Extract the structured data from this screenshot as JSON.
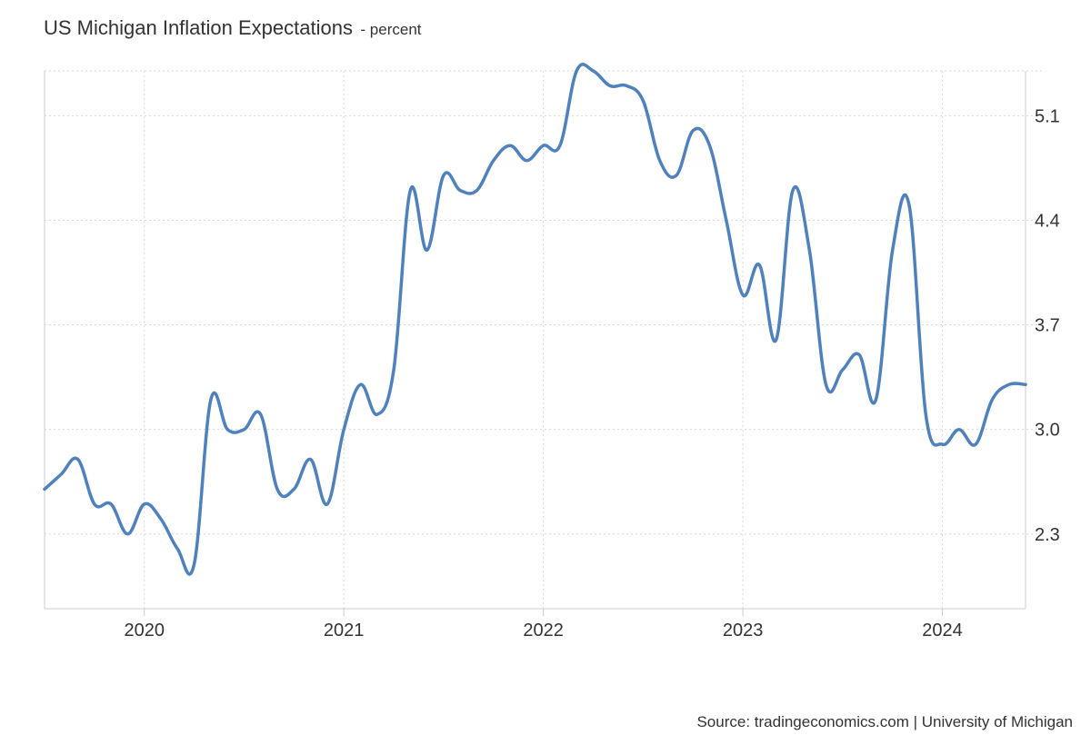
{
  "chart_data": {
    "type": "line",
    "title": "US Michigan Inflation Expectations",
    "subtitle": "- percent",
    "source": "Source: tradingeconomics.com | University of Michigan",
    "xlabel": "",
    "ylabel": "",
    "grid": true,
    "line_color": "#4f81bd",
    "ylim": [
      1.8,
      5.4
    ],
    "y_ticks": [
      2.3,
      3.0,
      3.7,
      4.4,
      5.1
    ],
    "y_tick_labels": [
      "2.3",
      "3.0",
      "3.7",
      "4.4",
      "5.1"
    ],
    "x_range": [
      "2019-07",
      "2024-06"
    ],
    "x_ticks": [
      "2020-01",
      "2021-01",
      "2022-01",
      "2023-01",
      "2024-01"
    ],
    "x_tick_labels": [
      "2020",
      "2021",
      "2022",
      "2023",
      "2024"
    ],
    "series": [
      {
        "name": "",
        "x": [
          "2019-07",
          "2019-08",
          "2019-09",
          "2019-10",
          "2019-11",
          "2019-12",
          "2020-01",
          "2020-02",
          "2020-03",
          "2020-04",
          "2020-05",
          "2020-06",
          "2020-07",
          "2020-08",
          "2020-09",
          "2020-10",
          "2020-11",
          "2020-12",
          "2021-01",
          "2021-02",
          "2021-03",
          "2021-04",
          "2021-05",
          "2021-06",
          "2021-07",
          "2021-08",
          "2021-09",
          "2021-10",
          "2021-11",
          "2021-12",
          "2022-01",
          "2022-02",
          "2022-03",
          "2022-04",
          "2022-05",
          "2022-06",
          "2022-07",
          "2022-08",
          "2022-09",
          "2022-10",
          "2022-11",
          "2022-12",
          "2023-01",
          "2023-02",
          "2023-03",
          "2023-04",
          "2023-05",
          "2023-06",
          "2023-07",
          "2023-08",
          "2023-09",
          "2023-10",
          "2023-11",
          "2023-12",
          "2024-01",
          "2024-02",
          "2024-03",
          "2024-04",
          "2024-05",
          "2024-06"
        ],
        "values": [
          2.6,
          2.7,
          2.8,
          2.5,
          2.5,
          2.3,
          2.5,
          2.4,
          2.2,
          2.1,
          3.2,
          3.0,
          3.0,
          3.1,
          2.6,
          2.6,
          2.8,
          2.5,
          3.0,
          3.3,
          3.1,
          3.4,
          4.6,
          4.2,
          4.7,
          4.6,
          4.6,
          4.8,
          4.9,
          4.8,
          4.9,
          4.9,
          5.4,
          5.4,
          5.3,
          5.3,
          5.2,
          4.8,
          4.7,
          5.0,
          4.9,
          4.4,
          3.9,
          4.1,
          3.6,
          4.6,
          4.2,
          3.3,
          3.4,
          3.5,
          3.2,
          4.2,
          4.5,
          3.1,
          2.9,
          3.0,
          2.9,
          3.2,
          3.3,
          3.3
        ]
      }
    ]
  }
}
